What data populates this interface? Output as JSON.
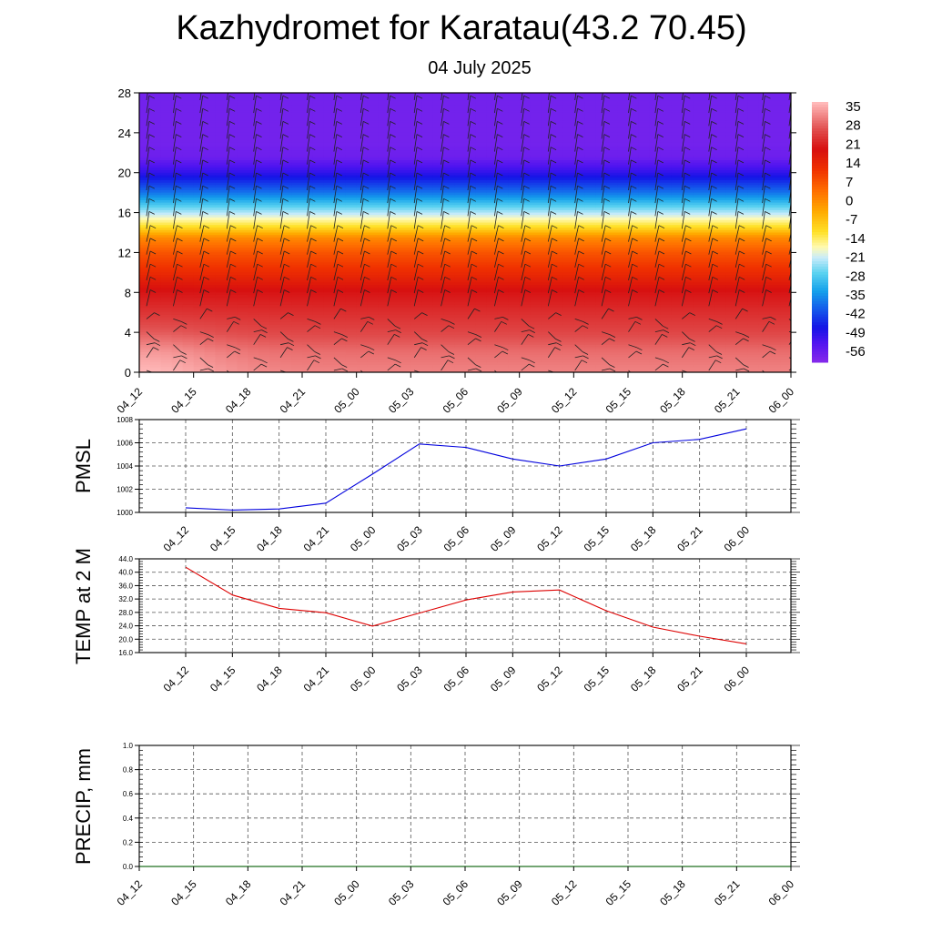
{
  "title": "Kazhydromet for Karatau(43.2 70.45)",
  "subtitle": "04 July 2025",
  "colors": {
    "pmsl_line": "#0000dd",
    "temp_line": "#dd0000",
    "precip_line": "#006400",
    "grid": "#555555"
  },
  "chart_data": [
    {
      "type": "heatmap",
      "name_hidden": "cross-section",
      "x_ticks": [
        "04_12",
        "04_15",
        "04_18",
        "04_21",
        "05_00",
        "05_03",
        "05_06",
        "05_09",
        "05_12",
        "05_15",
        "05_18",
        "05_21",
        "06_00"
      ],
      "y_ticks": [
        0,
        4,
        8,
        12,
        16,
        20,
        24,
        28
      ],
      "ylim": [
        0,
        28
      ],
      "colorbar_labels": [
        "35",
        "28",
        "21",
        "14",
        "7",
        "0",
        "-7",
        "-14",
        "-21",
        "-28",
        "-35",
        "-42",
        "-49",
        "-56"
      ],
      "color_range": [
        -60,
        38
      ],
      "temperature_profile": [
        {
          "h": 0,
          "t": 33
        },
        {
          "h": 2,
          "t": 31
        },
        {
          "h": 4,
          "t": 27
        },
        {
          "h": 6,
          "t": 24
        },
        {
          "h": 8,
          "t": 21
        },
        {
          "h": 10,
          "t": 14
        },
        {
          "h": 12,
          "t": 8
        },
        {
          "h": 13.5,
          "t": 1
        },
        {
          "h": 14.5,
          "t": -10
        },
        {
          "h": 16,
          "t": -22
        },
        {
          "h": 18,
          "t": -38
        },
        {
          "h": 20,
          "t": -50
        },
        {
          "h": 21.5,
          "t": -57
        },
        {
          "h": 23,
          "t": -58
        },
        {
          "h": 28,
          "t": -58
        }
      ],
      "surface_warm_pools": [
        {
          "x": 0.0,
          "h": 0,
          "t": 38
        },
        {
          "x": 4.0,
          "h": 0,
          "t": 28
        },
        {
          "x": 8.0,
          "h": 0,
          "t": 33
        },
        {
          "x": 11.0,
          "h": 0,
          "t": 30
        }
      ],
      "wind_barbs": true
    },
    {
      "type": "line",
      "ylabel": "PMSL",
      "x_ticks": [
        "04_12",
        "04_15",
        "04_18",
        "04_21",
        "05_00",
        "05_03",
        "05_06",
        "05_09",
        "05_12",
        "05_15",
        "05_18",
        "05_21",
        "06_00"
      ],
      "y_ticks": [
        "1000",
        "1002",
        "1004",
        "1006",
        "1008"
      ],
      "ylim": [
        1000,
        1008
      ],
      "series": [
        {
          "values": [
            1000.4,
            1000.2,
            1000.3,
            1000.8,
            1003.3,
            1005.9,
            1005.6,
            1004.6,
            1004.0,
            1004.6,
            1006.0,
            1006.3,
            1007.2
          ]
        }
      ]
    },
    {
      "type": "line",
      "ylabel": "TEMP at 2 M",
      "x_ticks": [
        "04_12",
        "04_15",
        "04_18",
        "04_21",
        "05_00",
        "05_03",
        "05_06",
        "05_09",
        "05_12",
        "05_15",
        "05_18",
        "05_21",
        "06_00"
      ],
      "y_ticks": [
        "16.0",
        "20.0",
        "24.0",
        "28.0",
        "32.0",
        "36.0",
        "40.0",
        "44.0"
      ],
      "ylim": [
        16,
        44
      ],
      "series": [
        {
          "values": [
            41.5,
            33.2,
            29.2,
            27.9,
            23.9,
            27.8,
            31.7,
            34.1,
            34.7,
            28.5,
            23.6,
            20.9,
            18.6
          ]
        }
      ]
    },
    {
      "type": "line",
      "ylabel": "PRECIP, mm",
      "x_ticks": [
        "04_12",
        "04_15",
        "04_18",
        "04_21",
        "05_00",
        "05_03",
        "05_06",
        "05_09",
        "05_12",
        "05_15",
        "05_18",
        "05_21",
        "06_00"
      ],
      "y_ticks": [
        "0.0",
        "0.2",
        "0.4",
        "0.6",
        "0.8",
        "1.0"
      ],
      "ylim": [
        0,
        1
      ],
      "series": [
        {
          "values": [
            0,
            0,
            0,
            0,
            0,
            0,
            0,
            0,
            0,
            0,
            0,
            0,
            0
          ]
        }
      ]
    }
  ]
}
